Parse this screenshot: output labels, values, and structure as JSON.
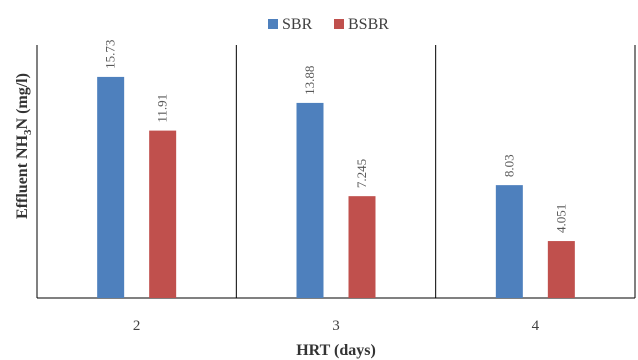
{
  "chart_data": {
    "type": "bar",
    "xlabel": "HRT (days)",
    "ylabel": {
      "pre": "Effluent NH",
      "sub1": "3",
      "mid": "N (mg/l)"
    },
    "categories": [
      "2",
      "3",
      "4"
    ],
    "series": [
      {
        "name": "SBR",
        "color": "#4e80bd",
        "values": [
          15.73,
          13.88,
          8.03
        ],
        "labels": [
          "15.73",
          "13.88",
          "8.03"
        ]
      },
      {
        "name": "BSBR",
        "color": "#c0504d",
        "values": [
          11.91,
          7.245,
          4.051
        ],
        "labels": [
          "11.91",
          "7.245",
          "4.051"
        ]
      }
    ],
    "ylim": [
      0,
      18
    ],
    "grid": false,
    "legend": "top-center"
  }
}
